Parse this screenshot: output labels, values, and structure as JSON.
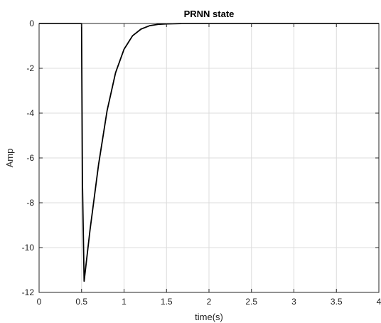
{
  "chart_data": {
    "type": "line",
    "title": "PRNN state",
    "xlabel": "time(s)",
    "ylabel": "Amp",
    "xlim": [
      0,
      4
    ],
    "ylim": [
      -12,
      0
    ],
    "xticks": [
      0,
      0.5,
      1,
      1.5,
      2,
      2.5,
      3,
      3.5,
      4
    ],
    "xtick_labels": [
      "0",
      "0.5",
      "1",
      "1.5",
      "2",
      "2.5",
      "3",
      "3.5",
      "4"
    ],
    "yticks": [
      0,
      -2,
      -4,
      -6,
      -8,
      -10,
      -12
    ],
    "ytick_labels": [
      "0",
      "-2",
      "-4",
      "-6",
      "-8",
      "-10",
      "-12"
    ],
    "grid": true,
    "colors": {
      "line": "#000000",
      "grid": "#dcdcdc",
      "axes": "#262626"
    },
    "series": [
      {
        "x": [
          0,
          0.5,
          0.51,
          0.53,
          0.6,
          0.7,
          0.8,
          0.9,
          1.0,
          1.1,
          1.2,
          1.3,
          1.4,
          1.5,
          1.7,
          2.0,
          2.5,
          3.0,
          4.0
        ],
        "values": [
          0,
          0,
          -7.0,
          -11.5,
          -9.2,
          -6.3,
          -3.9,
          -2.2,
          -1.15,
          -0.55,
          -0.25,
          -0.1,
          -0.04,
          -0.02,
          0,
          0,
          0,
          0,
          0
        ]
      }
    ]
  }
}
